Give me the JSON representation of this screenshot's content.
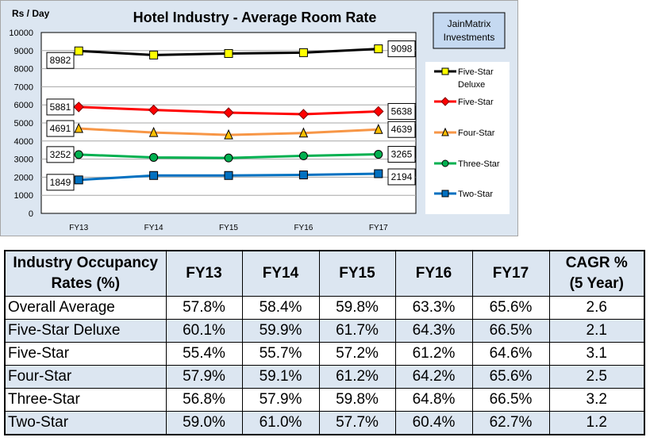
{
  "chart_data": {
    "type": "line",
    "title": "Hotel Industry - Average Room Rate",
    "ylabel": "Rs / Day",
    "categories": [
      "FY13",
      "FY14",
      "FY15",
      "FY16",
      "FY17"
    ],
    "ylim": [
      0,
      10000
    ],
    "yticks": [
      0,
      1000,
      2000,
      3000,
      4000,
      5000,
      6000,
      7000,
      8000,
      9000,
      10000
    ],
    "grid": true,
    "legend_position": "right",
    "series": [
      {
        "name": "Five-Star Deluxe",
        "values": [
          8982,
          8755,
          8840,
          8887,
          9098
        ],
        "color": "#000000",
        "marker": "square",
        "marker_color": "#ffff00",
        "labels": [
          "8982",
          "9098"
        ]
      },
      {
        "name": "Five-Star",
        "values": [
          5881,
          5720,
          5570,
          5483,
          5638
        ],
        "color": "#ff0000",
        "marker": "diamond",
        "marker_color": "#ff0000",
        "labels": [
          "5881",
          "5638"
        ]
      },
      {
        "name": "Four-Star",
        "values": [
          4691,
          4470,
          4338,
          4440,
          4639
        ],
        "color": "#f79646",
        "marker": "triangle",
        "marker_color": "#ffc000",
        "labels": [
          "4691",
          "4639"
        ]
      },
      {
        "name": "Three-Star",
        "values": [
          3252,
          3093,
          3063,
          3181,
          3265
        ],
        "color": "#00b050",
        "marker": "circle",
        "marker_color": "#00b050",
        "labels": [
          "3252",
          "3265"
        ]
      },
      {
        "name": "Two-Star",
        "values": [
          1849,
          2094,
          2094,
          2125,
          2194
        ],
        "color": "#0070c0",
        "marker": "square",
        "marker_color": "#0070c0",
        "labels": [
          "1849",
          "2194"
        ]
      }
    ]
  },
  "brand": {
    "line1": "JainMatrix",
    "line2": "Investments"
  },
  "table": {
    "header": {
      "title_line1": "Industry Occupancy",
      "title_line2": "Rates (%)",
      "cols": [
        "FY13",
        "FY14",
        "FY15",
        "FY16",
        "FY17"
      ],
      "cagr_line1": "CAGR %",
      "cagr_line2": "(5 Year)"
    },
    "rows": [
      {
        "label": "Overall Average",
        "values": [
          "57.8%",
          "58.4%",
          "59.8%",
          "63.3%",
          "65.6%"
        ],
        "cagr": "2.6"
      },
      {
        "label": "Five-Star Deluxe",
        "values": [
          "60.1%",
          "59.9%",
          "61.7%",
          "64.3%",
          "66.5%"
        ],
        "cagr": "2.1"
      },
      {
        "label": "Five-Star",
        "values": [
          "55.4%",
          "55.7%",
          "57.2%",
          "61.2%",
          "64.6%"
        ],
        "cagr": "3.1"
      },
      {
        "label": "Four-Star",
        "values": [
          "57.9%",
          "59.1%",
          "61.2%",
          "64.2%",
          "65.6%"
        ],
        "cagr": "2.5"
      },
      {
        "label": "Three-Star",
        "values": [
          "56.8%",
          "57.9%",
          "59.8%",
          "64.8%",
          "66.5%"
        ],
        "cagr": "3.2"
      },
      {
        "label": "Two-Star",
        "values": [
          "59.0%",
          "61.0%",
          "57.7%",
          "60.4%",
          "62.7%"
        ],
        "cagr": "1.2"
      }
    ]
  }
}
